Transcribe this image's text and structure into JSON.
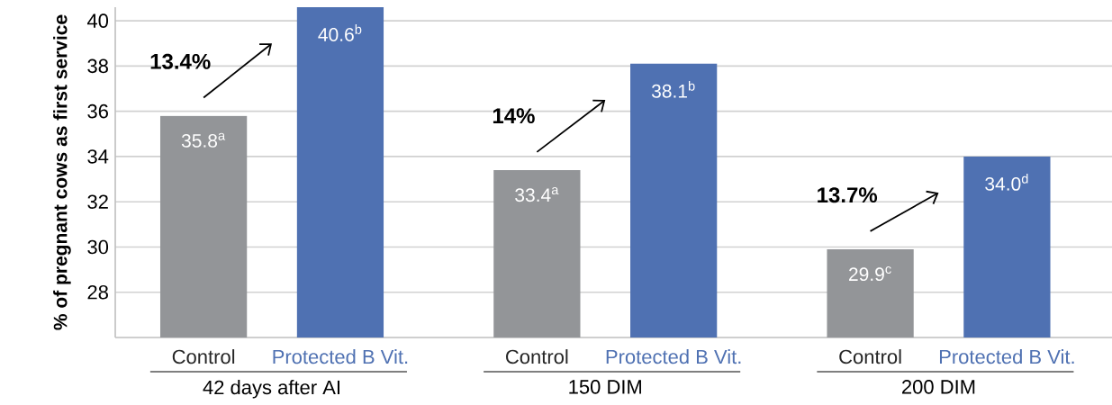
{
  "chart_data": {
    "type": "bar",
    "ylabel": "% of pregnant cows as first service",
    "categories": [
      "42 days after AI",
      "150 DIM",
      "200 DIM"
    ],
    "series": [
      {
        "name": "Control",
        "color": "#939598",
        "values": [
          35.8,
          33.4,
          29.9
        ],
        "value_labels": [
          "35.8$^{a}$",
          "33.4$^{a}$",
          "29.9$^{c}$"
        ]
      },
      {
        "name": "Protected B Vit.",
        "color": "#4f71b2",
        "values": [
          40.6,
          38.1,
          34.0
        ],
        "value_labels": [
          "40.6$^{b}$",
          "38.1$^{b}$",
          "34.0$^{d}$"
        ]
      }
    ],
    "annotations": [
      "13.4%",
      "14%",
      "13.7%"
    ],
    "ylim": [
      26,
      40.6
    ],
    "yticks": [
      28,
      30,
      32,
      34,
      36,
      38,
      40
    ],
    "grid": "y"
  }
}
